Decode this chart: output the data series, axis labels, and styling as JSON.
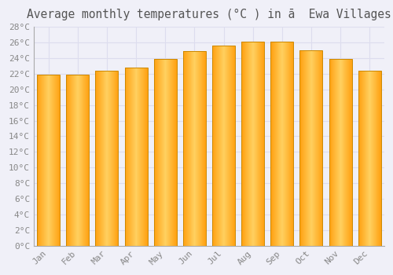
{
  "title": "Average monthly temperatures (°C ) in ā  Ewa Villages",
  "months": [
    "Jan",
    "Feb",
    "Mar",
    "Apr",
    "May",
    "Jun",
    "Jul",
    "Aug",
    "Sep",
    "Oct",
    "Nov",
    "Dec"
  ],
  "temperatures": [
    21.9,
    21.9,
    22.4,
    22.8,
    23.9,
    24.9,
    25.6,
    26.1,
    26.1,
    25.0,
    23.9,
    22.4
  ],
  "bar_color_center": "#FFD060",
  "bar_color_edge": "#FFA010",
  "bar_border_color": "#CC8800",
  "background_color": "#F0F0F8",
  "grid_color": "#DDDDEE",
  "text_color": "#888888",
  "title_color": "#555555",
  "ylim": [
    0,
    28
  ],
  "ytick_step": 2,
  "title_fontsize": 10.5,
  "tick_fontsize": 8,
  "font_family": "monospace"
}
